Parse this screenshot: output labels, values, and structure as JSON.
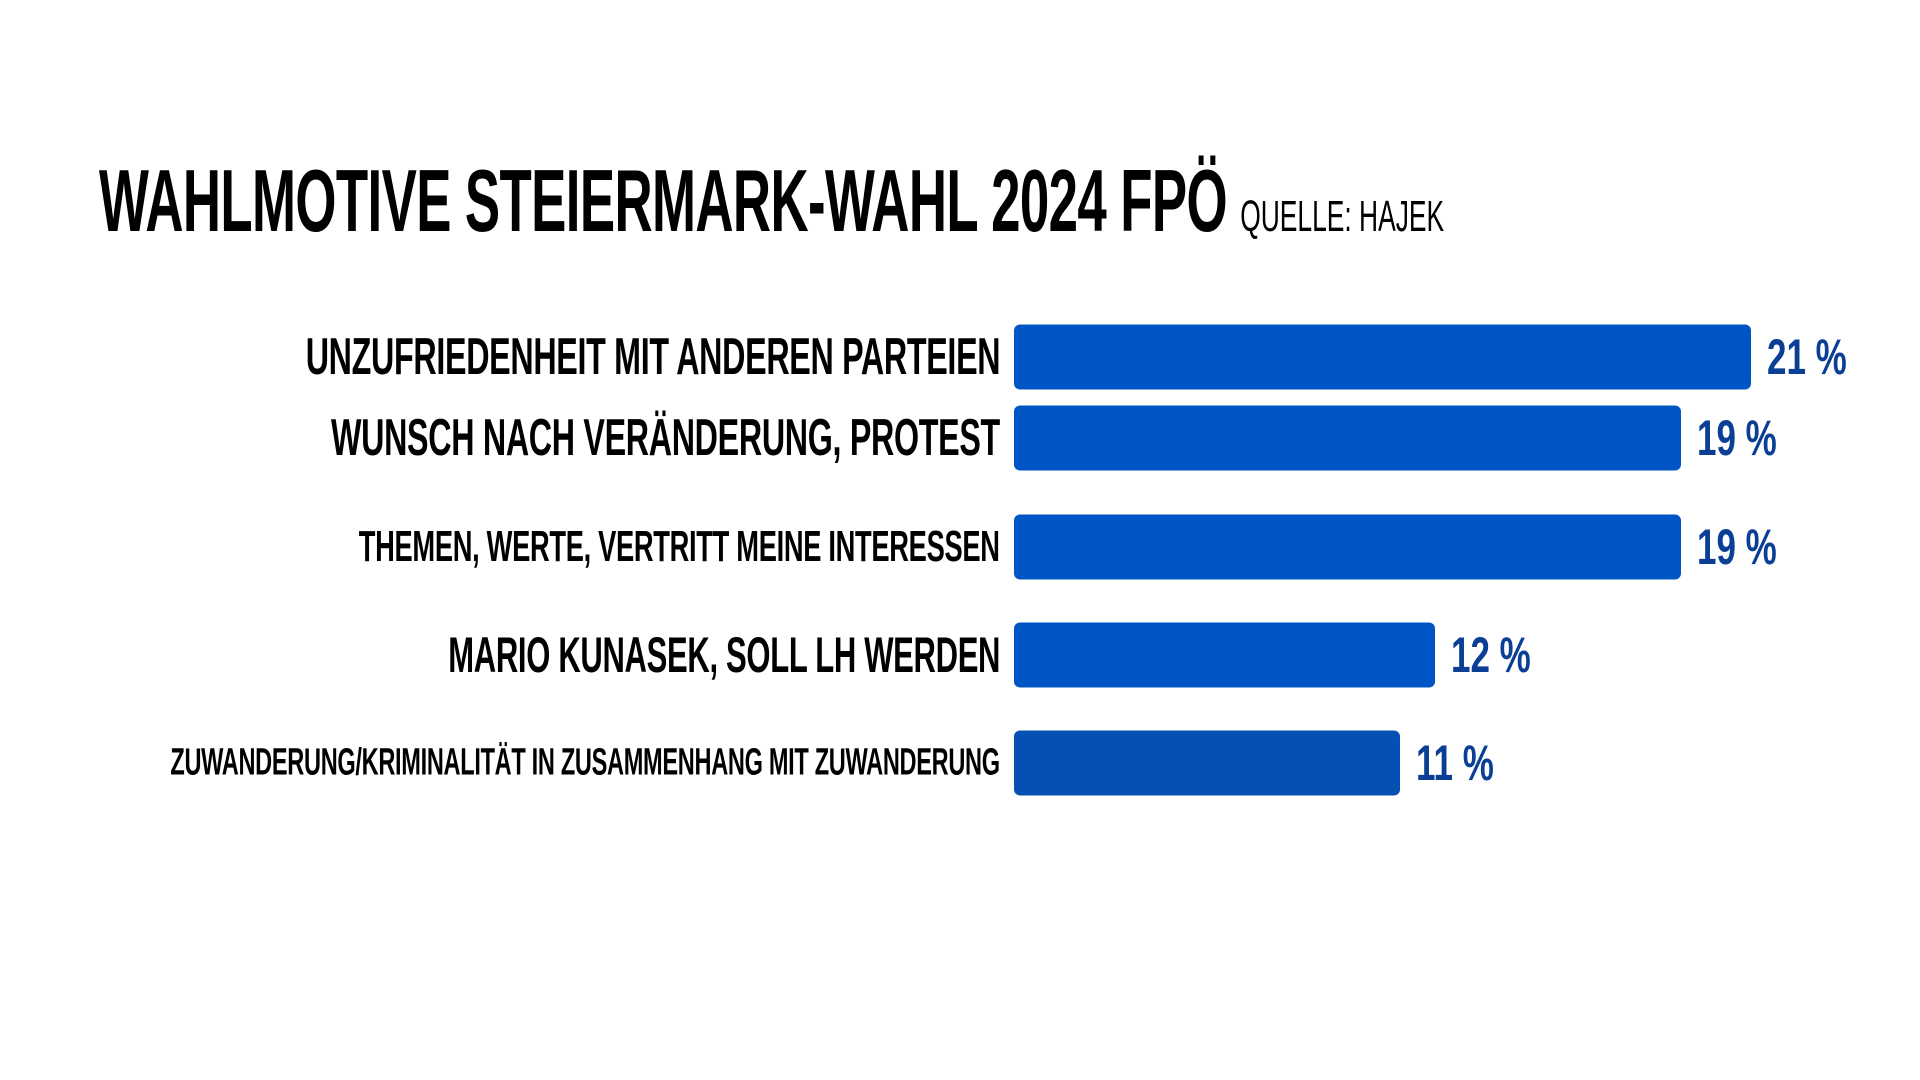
{
  "chart_data": {
    "type": "bar",
    "orientation": "horizontal",
    "title": "WAHLMOTIVE STEIERMARK-WAHL 2024 FPÖ",
    "subtitle": "QUELLE: HAJEK",
    "categories": [
      "UNZUFRIEDENHEIT MIT ANDEREN PARTEIEN",
      "WUNSCH NACH VERÄNDERUNG, PROTEST",
      "THEMEN, WERTE, VERTRITT MEINE INTERESSEN",
      "MARIO KUNASEK, SOLL LH WERDEN",
      "ZUWANDERUNG/KRIMINALITÄT IN ZUSAMMENHANG MIT ZUWANDERUNG"
    ],
    "values": [
      21,
      19,
      19,
      12,
      11
    ],
    "value_labels": [
      "21 %",
      "19 %",
      "19 %",
      "12 %",
      "11 %"
    ],
    "unit": "%",
    "xlim": [
      0,
      30
    ],
    "grid": false,
    "colors": {
      "bar": "#0055c4",
      "bar_last": "#0550b2",
      "value_text": "#0b3f96"
    }
  }
}
